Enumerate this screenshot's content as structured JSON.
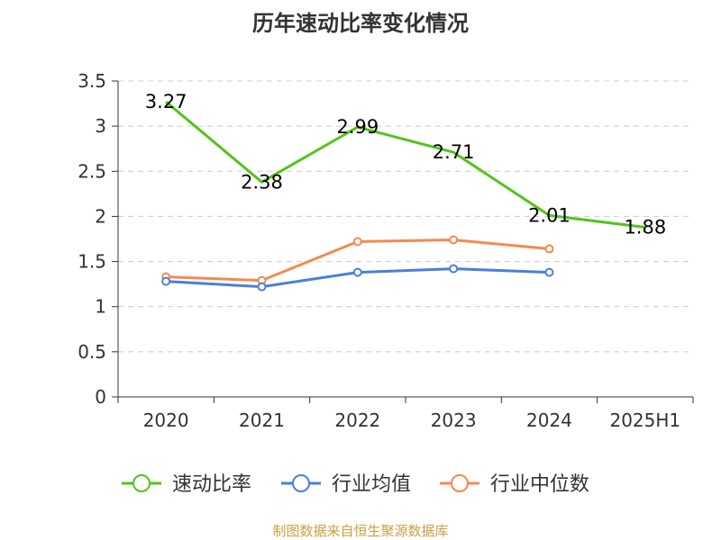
{
  "chart_data": {
    "type": "line",
    "title": "历年速动比率变化情况",
    "categories": [
      "2020",
      "2021",
      "2022",
      "2023",
      "2024",
      "2025H1"
    ],
    "ylim": [
      0,
      3.5
    ],
    "yticks": [
      "0",
      "0.5",
      "1",
      "1.5",
      "2",
      "2.5",
      "3",
      "3.5"
    ],
    "grid": true,
    "legend_position": "bottom",
    "series": [
      {
        "name": "速动比率",
        "color": "#52c41a",
        "values": [
          3.27,
          2.38,
          2.99,
          2.71,
          2.01,
          1.88
        ],
        "labels": [
          "3.27",
          "2.38",
          "2.99",
          "2.71",
          "2.01",
          "1.88"
        ]
      },
      {
        "name": "行业均值",
        "color": "#4a7fdb",
        "values": [
          1.28,
          1.22,
          1.38,
          1.42,
          1.38,
          null
        ]
      },
      {
        "name": "行业中位数",
        "color": "#f5894f",
        "values": [
          1.33,
          1.29,
          1.72,
          1.74,
          1.64,
          null
        ]
      }
    ]
  },
  "source": "制图数据来自恒生聚源数据库"
}
